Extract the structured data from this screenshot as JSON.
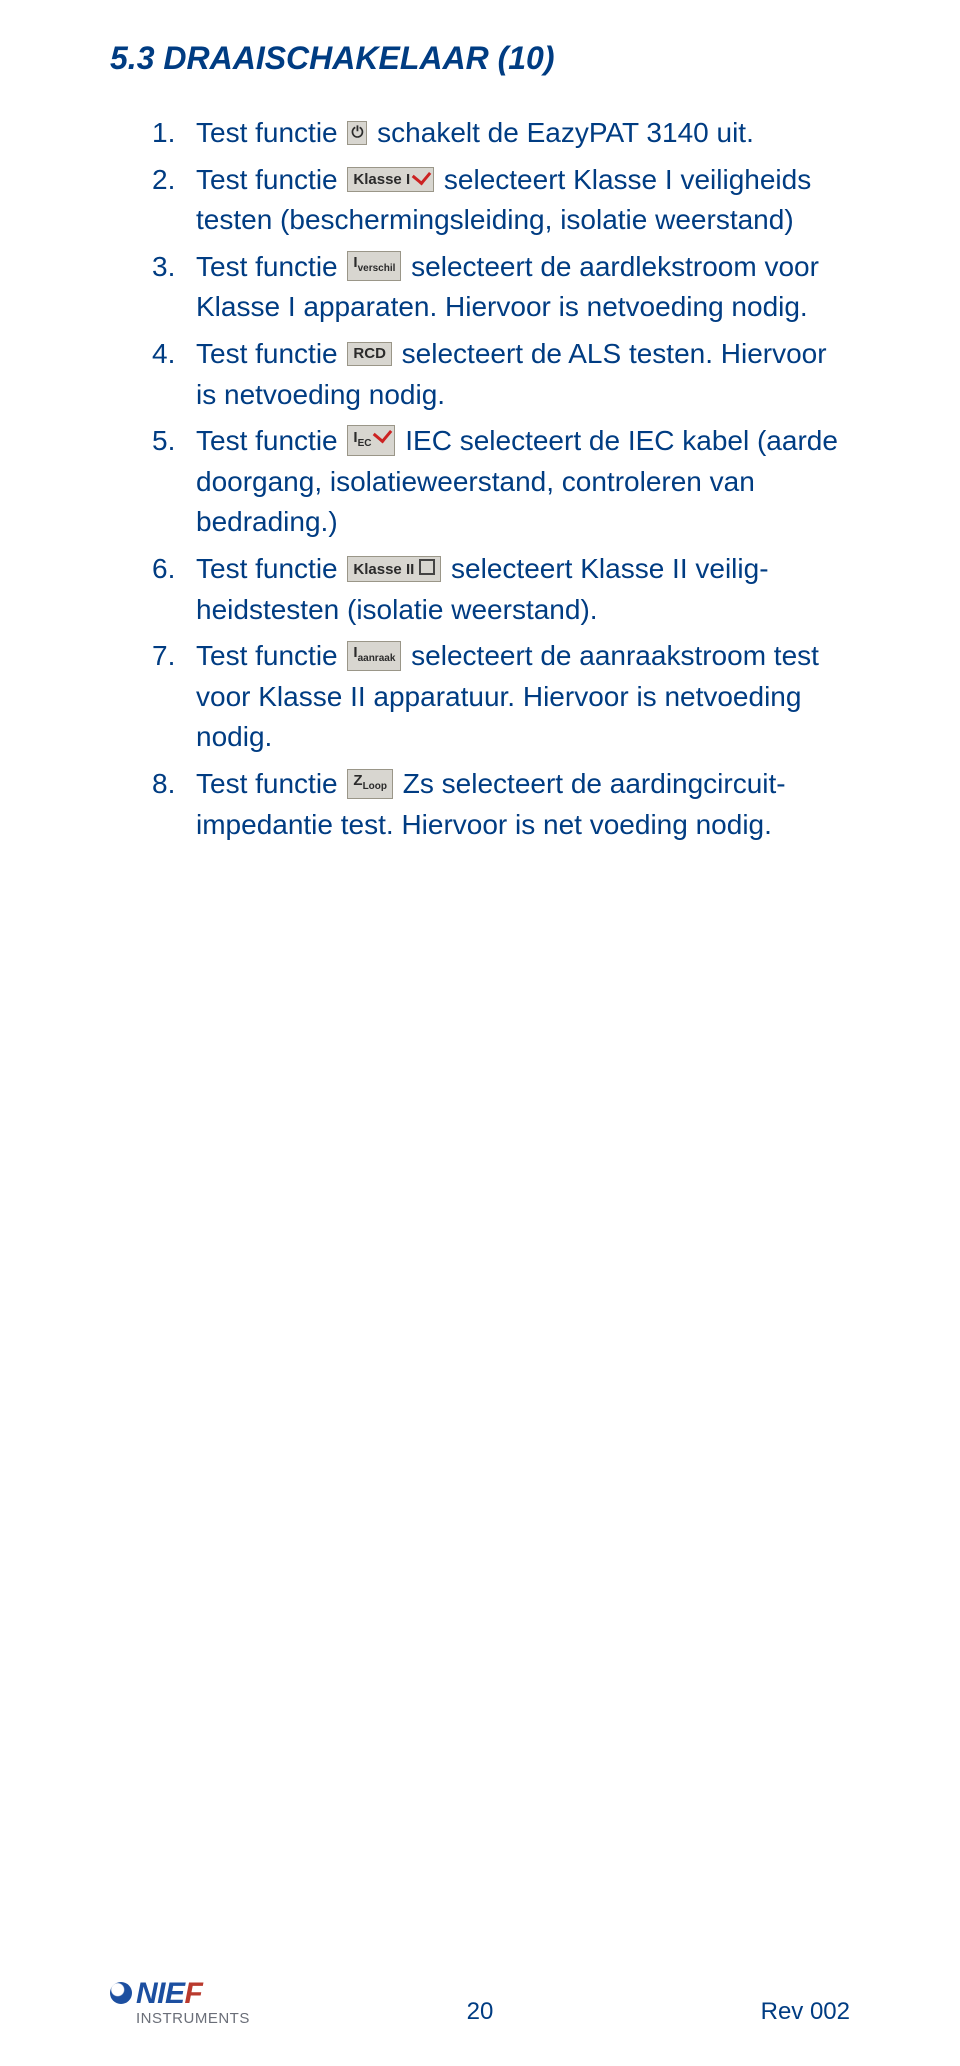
{
  "heading": "5.3  DRAAISCHAKELAAR (10)",
  "items": [
    {
      "num": "1.",
      "parts": [
        {
          "t": "text",
          "v": "Test functie "
        },
        {
          "t": "icon",
          "cls": "icon-off",
          "label": "⏻"
        },
        {
          "t": "text",
          "v": " schakelt de EazyPAT 3140 uit."
        }
      ]
    },
    {
      "num": "2.",
      "parts": [
        {
          "t": "text",
          "v": "Test functie "
        },
        {
          "t": "icon",
          "cls": "icon-check",
          "label": "Klasse I"
        },
        {
          "t": "text",
          "v": " selecteert Klasse I veiligheids testen (beschermingsleiding, isolatie weerstand)"
        }
      ]
    },
    {
      "num": "3.",
      "parts": [
        {
          "t": "text",
          "v": "Test functie "
        },
        {
          "t": "icon",
          "cls": "",
          "label": "Iverschil"
        },
        {
          "t": "text",
          "v": " selecteert de aardlekstroom voor Klasse I apparaten. Hiervoor is netvoeding nodig."
        }
      ]
    },
    {
      "num": "4.",
      "parts": [
        {
          "t": "text",
          "v": "Test functie "
        },
        {
          "t": "icon",
          "cls": "",
          "label": "RCD"
        },
        {
          "t": "text",
          "v": " selecteert de ALS testen. Hiervoor is netvoeding nodig."
        }
      ]
    },
    {
      "num": "5.",
      "parts": [
        {
          "t": "text",
          "v": "Test functie "
        },
        {
          "t": "icon",
          "cls": "icon-check",
          "label": "IEC"
        },
        {
          "t": "text",
          "v": " IEC selecteert de IEC kabel (aarde doorgang, isolatieweerstand, controleren van bedrading.)"
        }
      ]
    },
    {
      "num": "6.",
      "parts": [
        {
          "t": "text",
          "v": "Test functie "
        },
        {
          "t": "icon",
          "cls": "icon-sq",
          "label": "Klasse II"
        },
        {
          "t": "text",
          "v": " selecteert Klasse II veilig­heidstesten (isolatie weerstand)."
        }
      ]
    },
    {
      "num": "7.",
      "parts": [
        {
          "t": "text",
          "v": "Test functie "
        },
        {
          "t": "icon",
          "cls": "",
          "label": "Iaanraak"
        },
        {
          "t": "text",
          "v": " selecteert de aanraakstroom test voor Klasse II apparatuur. Hiervoor is netvoeding nodig."
        }
      ]
    },
    {
      "num": "8.",
      "parts": [
        {
          "t": "text",
          "v": "Test functie "
        },
        {
          "t": "icon",
          "cls": "",
          "label": "ZLoop"
        },
        {
          "t": "text",
          "v": " Zs selecteert de aardingcircuit­impedantie test. Hiervoor is net voeding nodig."
        }
      ]
    }
  ],
  "footer": {
    "logo_top": "NIE",
    "logo_top2": "F",
    "logo_bot": "INSTRUMENTS",
    "page": "20",
    "rev": "Rev 002"
  }
}
